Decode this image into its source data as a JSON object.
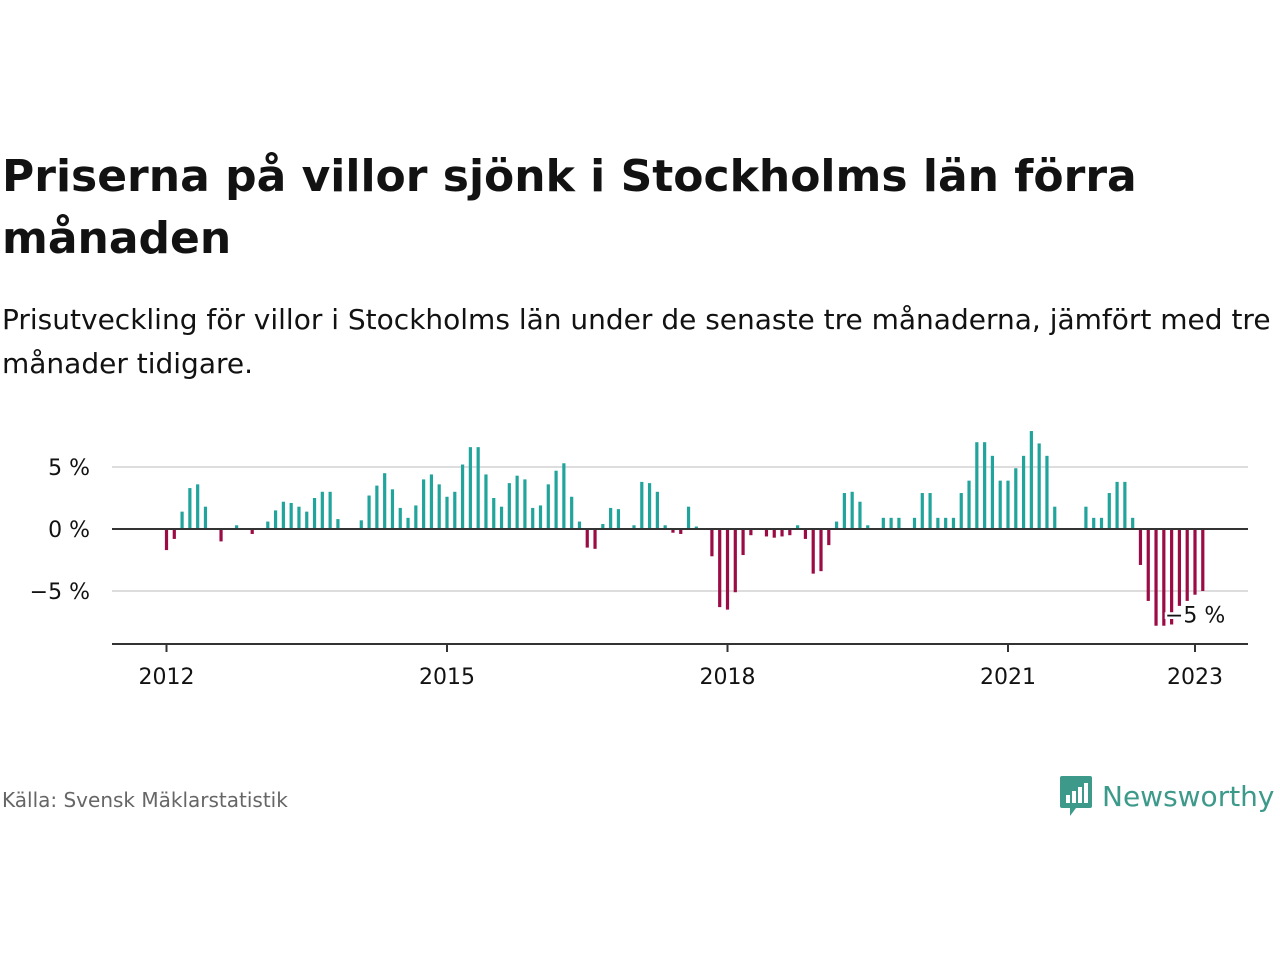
{
  "header": {
    "title": "Priserna på villor sjönk i Stockholms län förra månaden",
    "subtitle": "Prisutveckling för villor i Stockholms län under de senaste tre månaderna, jämfört med tre månader tidigare."
  },
  "footer": {
    "source": "Källa: Svensk Mäklarstatistik",
    "brand": "Newsworthy"
  },
  "colors": {
    "positive": "#21a49b",
    "negative": "#9b0b45",
    "grid": "#dddddd",
    "axis": "#333333",
    "brand": "#3d9a8b"
  },
  "chart_data": {
    "type": "bar",
    "title": "",
    "xlabel": "",
    "ylabel": "",
    "ylim": [
      -9,
      7.5
    ],
    "y_ticks": [
      5,
      0,
      -5
    ],
    "y_tick_labels": [
      "5 %",
      "0 %",
      "−5 %"
    ],
    "x_ticks": [
      "2012",
      "2015",
      "2018",
      "2021",
      "2023"
    ],
    "grid": true,
    "legend": "none",
    "annotation": {
      "label": "−5 %",
      "date": "2023-01"
    },
    "series": [
      {
        "start": "2012-01",
        "frequency": "monthly",
        "values": [
          -1.7,
          -0.8,
          1.4,
          3.3,
          3.6,
          1.8,
          0,
          -1.0,
          0,
          0.3,
          0,
          -0.4,
          0,
          0.6,
          1.5,
          2.2,
          2.1,
          1.8,
          1.4,
          2.5,
          3.0,
          3.0,
          0.8,
          0,
          0,
          0.7,
          2.7,
          3.5,
          4.5,
          3.2,
          1.7,
          0.9,
          1.9,
          4.0,
          4.4,
          3.6,
          2.6,
          3.0,
          5.2,
          6.6,
          6.6,
          4.4,
          2.5,
          1.8,
          3.7,
          4.3,
          4.0,
          1.7,
          1.9,
          3.6,
          4.7,
          5.3,
          2.6,
          0.6,
          -1.5,
          -1.6,
          0.4,
          1.7,
          1.6,
          0,
          0.3,
          3.8,
          3.7,
          3.0,
          0.3,
          -0.3,
          -0.4,
          1.8,
          0.2,
          0,
          -2.2,
          -6.3,
          -6.5,
          -5.1,
          -2.1,
          -0.5,
          0,
          -0.6,
          -0.7,
          -0.6,
          -0.5,
          0.3,
          -0.8,
          -3.6,
          -3.4,
          -1.3,
          0.6,
          2.9,
          3.0,
          2.2,
          0.3,
          0,
          0.9,
          0.9,
          0.9,
          0,
          0.9,
          2.9,
          2.9,
          0.9,
          0.9,
          0.9,
          2.9,
          3.9,
          7.0,
          7.0,
          5.9,
          3.9,
          3.9,
          4.9,
          5.9,
          7.9,
          6.9,
          5.9,
          1.8,
          0,
          0,
          0,
          1.8,
          0.9,
          0.9,
          2.9,
          3.8,
          3.8,
          0.9,
          -2.9,
          -5.8,
          -7.8,
          -7.8,
          -7.7,
          -6.2,
          -5.8,
          -5.3,
          -5.0
        ]
      }
    ]
  }
}
